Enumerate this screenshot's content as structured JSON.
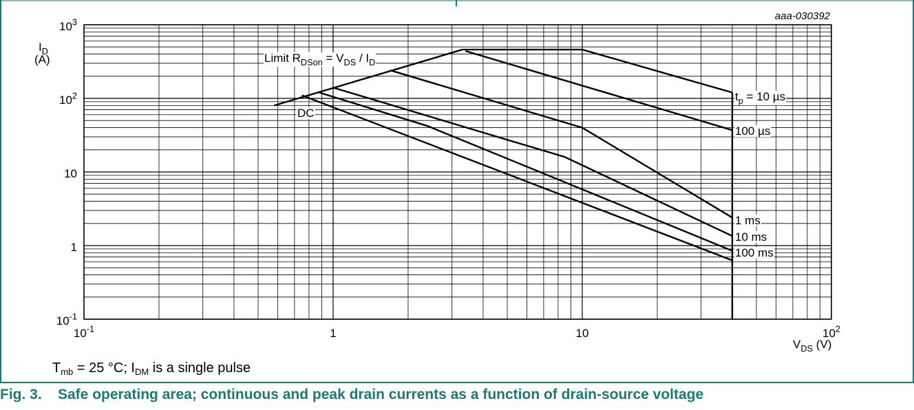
{
  "chart_data": {
    "type": "line",
    "figure_id": "aaa-030392",
    "x_scale": "log",
    "y_scale": "log",
    "xlim": [
      0.1,
      100
    ],
    "ylim": [
      0.1,
      1000
    ],
    "x_ticks": [
      {
        "value": 0.1,
        "base": "10",
        "exp": "-1"
      },
      {
        "value": 1,
        "base": "1",
        "exp": ""
      },
      {
        "value": 10,
        "base": "10",
        "exp": ""
      },
      {
        "value": 100,
        "base": "10",
        "exp": "2"
      }
    ],
    "y_ticks": [
      {
        "value": 1000,
        "base": "10",
        "exp": "3"
      },
      {
        "value": 100,
        "base": "10",
        "exp": "2"
      },
      {
        "value": 10,
        "base": "10",
        "exp": ""
      },
      {
        "value": 1,
        "base": "1",
        "exp": ""
      },
      {
        "value": 0.1,
        "base": "10",
        "exp": "-1"
      }
    ],
    "ylabel": {
      "main": "I",
      "sub": "D",
      "unit": "(A)"
    },
    "xlabel": {
      "main": "V",
      "sub": "DS",
      "unit": " (V)"
    },
    "grid": true,
    "limit_line": {
      "label": "Limit R",
      "label_sub": "DSon",
      "label_mid": " = V",
      "label_sub2": "DS",
      "label_end": " / I",
      "label_sub3": "D",
      "points": [
        [
          0.58,
          80
        ],
        [
          3.3,
          460
        ]
      ]
    },
    "vertical_limit": {
      "x": 40,
      "y_from": 0.1,
      "y_to": 120
    },
    "series": [
      {
        "name": "t",
        "name_sub": "p",
        "name_rest": " = 10 µs",
        "points": [
          [
            3.3,
            460
          ],
          [
            10,
            460
          ],
          [
            40,
            120
          ]
        ]
      },
      {
        "name": "100 µs",
        "points": [
          [
            3.4,
            440
          ],
          [
            40,
            37
          ]
        ]
      },
      {
        "name": "1 ms",
        "points": [
          [
            1.7,
            240
          ],
          [
            10,
            40
          ],
          [
            40,
            2.4
          ]
        ]
      },
      {
        "name": "10 ms",
        "points": [
          [
            1.0,
            140
          ],
          [
            8.5,
            16
          ],
          [
            40,
            1.35
          ]
        ]
      },
      {
        "name": "100 ms",
        "points": [
          [
            0.88,
            120
          ],
          [
            2.4,
            42
          ],
          [
            40,
            0.85
          ]
        ]
      },
      {
        "name": "DC",
        "points": [
          [
            0.75,
            110
          ],
          [
            40,
            0.63
          ]
        ]
      }
    ],
    "annotations": [
      "DC",
      "t_p = 10 µs",
      "100 µs",
      "1 ms",
      "10 ms",
      "100 ms"
    ]
  },
  "note": {
    "t": "T",
    "t_sub": "mb",
    "text1": " = 25 °C; I",
    "i_sub": "DM",
    "text2": " is a single pulse"
  },
  "caption": {
    "number": "Fig. 3.",
    "text": "Safe operating area; continuous and peak drain currents as a function of drain-source voltage"
  },
  "colors": {
    "caption": "#1a7a78",
    "frame": "#1a7a78"
  }
}
